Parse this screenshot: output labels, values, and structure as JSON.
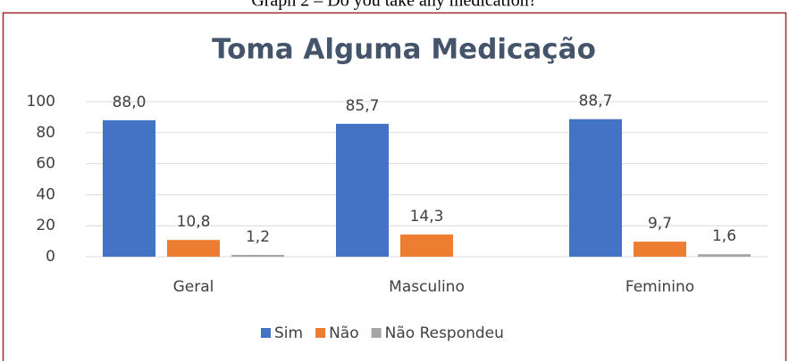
{
  "caption": "Graph 2 – Do you take any medication?",
  "chart_data": {
    "type": "bar",
    "title": "Toma Alguma Medicação",
    "categories": [
      "Geral",
      "Masculino",
      "Feminino"
    ],
    "series": [
      {
        "name": "Sim",
        "color": "#4472c4",
        "values": [
          88.0,
          85.7,
          88.7
        ],
        "value_labels": [
          "88,0",
          "85,7",
          "88,7"
        ]
      },
      {
        "name": "Não",
        "color": "#ed7d31",
        "values": [
          10.8,
          14.3,
          9.7
        ],
        "value_labels": [
          "10,8",
          "14,3",
          "9,7"
        ]
      },
      {
        "name": "Não Respondeu",
        "color": "#a5a5a5",
        "values": [
          1.2,
          null,
          1.6
        ],
        "value_labels": [
          "1,2",
          null,
          "1,6"
        ]
      }
    ],
    "ylim": [
      0,
      100
    ],
    "yticks": [
      0,
      20,
      40,
      60,
      80,
      100
    ],
    "grid": true,
    "legend": "bottom"
  }
}
